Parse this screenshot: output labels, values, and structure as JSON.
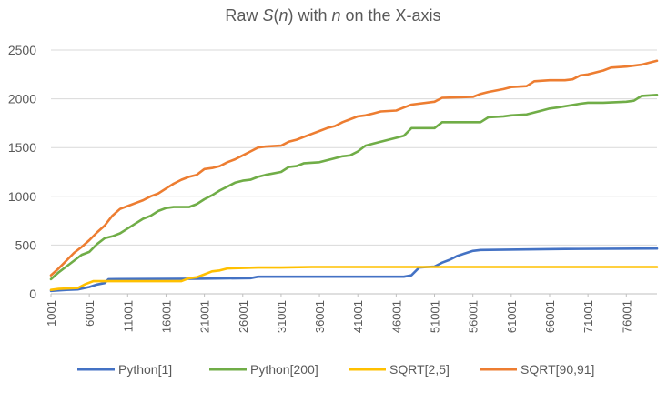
{
  "chart_data": {
    "type": "line",
    "title": {
      "prefix": "Raw ",
      "italic_s": "S",
      "paren_open": "(",
      "italic_n": "n",
      "paren_close": ")",
      "middle": " with ",
      "italic_n2": "n",
      "suffix": " on the X-axis"
    },
    "xlabel": "",
    "ylabel": "",
    "xlim": [
      1001,
      80000
    ],
    "ylim": [
      0,
      2500
    ],
    "x_ticks": [
      "1001",
      "6001",
      "11001",
      "16001",
      "21001",
      "26001",
      "31001",
      "36001",
      "41001",
      "46001",
      "51001",
      "56001",
      "61001",
      "66001",
      "71001",
      "76001"
    ],
    "y_ticks": [
      "0",
      "500",
      "1000",
      "1500",
      "2000",
      "2500"
    ],
    "grid": "horizontal",
    "legend_position": "bottom",
    "series": [
      {
        "name": "Python[1]",
        "color": "#4472C4",
        "points": [
          [
            1001,
            30
          ],
          [
            3000,
            40
          ],
          [
            4500,
            45
          ],
          [
            6001,
            70
          ],
          [
            7000,
            95
          ],
          [
            8000,
            110
          ],
          [
            8500,
            150
          ],
          [
            20000,
            155
          ],
          [
            27000,
            160
          ],
          [
            28000,
            175
          ],
          [
            47000,
            175
          ],
          [
            48000,
            190
          ],
          [
            49000,
            270
          ],
          [
            51001,
            280
          ],
          [
            52000,
            320
          ],
          [
            53000,
            350
          ],
          [
            54000,
            390
          ],
          [
            56001,
            440
          ],
          [
            57000,
            450
          ],
          [
            63000,
            455
          ],
          [
            68000,
            460
          ],
          [
            80000,
            465
          ]
        ]
      },
      {
        "name": "Python[200]",
        "color": "#70AD47",
        "points": [
          [
            1001,
            150
          ],
          [
            2000,
            220
          ],
          [
            3000,
            280
          ],
          [
            4000,
            340
          ],
          [
            5000,
            400
          ],
          [
            6001,
            430
          ],
          [
            7000,
            510
          ],
          [
            8000,
            570
          ],
          [
            9000,
            590
          ],
          [
            10000,
            620
          ],
          [
            11001,
            670
          ],
          [
            12000,
            720
          ],
          [
            13000,
            770
          ],
          [
            14000,
            800
          ],
          [
            15000,
            850
          ],
          [
            16001,
            880
          ],
          [
            17000,
            890
          ],
          [
            19000,
            890
          ],
          [
            20000,
            920
          ],
          [
            21001,
            970
          ],
          [
            22000,
            1010
          ],
          [
            23000,
            1060
          ],
          [
            24000,
            1100
          ],
          [
            25000,
            1140
          ],
          [
            26001,
            1160
          ],
          [
            27000,
            1170
          ],
          [
            28000,
            1200
          ],
          [
            29000,
            1220
          ],
          [
            31001,
            1250
          ],
          [
            32000,
            1300
          ],
          [
            33000,
            1310
          ],
          [
            34000,
            1340
          ],
          [
            36001,
            1350
          ],
          [
            37000,
            1370
          ],
          [
            38000,
            1390
          ],
          [
            39000,
            1410
          ],
          [
            40000,
            1420
          ],
          [
            41001,
            1460
          ],
          [
            42000,
            1520
          ],
          [
            43000,
            1540
          ],
          [
            44000,
            1560
          ],
          [
            45000,
            1580
          ],
          [
            46001,
            1600
          ],
          [
            47000,
            1620
          ],
          [
            48000,
            1700
          ],
          [
            51001,
            1700
          ],
          [
            52000,
            1760
          ],
          [
            56001,
            1760
          ],
          [
            57000,
            1760
          ],
          [
            58000,
            1810
          ],
          [
            60000,
            1820
          ],
          [
            61001,
            1830
          ],
          [
            63000,
            1840
          ],
          [
            64000,
            1860
          ],
          [
            65000,
            1880
          ],
          [
            66001,
            1900
          ],
          [
            67000,
            1910
          ],
          [
            70000,
            1950
          ],
          [
            71001,
            1960
          ],
          [
            73000,
            1960
          ],
          [
            76001,
            1970
          ],
          [
            77000,
            1980
          ],
          [
            78000,
            2030
          ],
          [
            80000,
            2040
          ]
        ]
      },
      {
        "name": "SQRT[2,5]",
        "color": "#FFC000",
        "points": [
          [
            1001,
            40
          ],
          [
            2000,
            50
          ],
          [
            4500,
            60
          ],
          [
            5500,
            100
          ],
          [
            6500,
            130
          ],
          [
            10000,
            130
          ],
          [
            18000,
            130
          ],
          [
            19000,
            160
          ],
          [
            20000,
            170
          ],
          [
            21001,
            200
          ],
          [
            22000,
            230
          ],
          [
            23000,
            240
          ],
          [
            24000,
            260
          ],
          [
            26001,
            265
          ],
          [
            28000,
            270
          ],
          [
            31001,
            270
          ],
          [
            35000,
            275
          ],
          [
            80000,
            275
          ]
        ]
      },
      {
        "name": "SQRT[90,91]",
        "color": "#ED7D31",
        "points": [
          [
            1001,
            190
          ],
          [
            2000,
            260
          ],
          [
            3000,
            340
          ],
          [
            4000,
            420
          ],
          [
            5000,
            480
          ],
          [
            6001,
            550
          ],
          [
            7000,
            630
          ],
          [
            8000,
            700
          ],
          [
            9000,
            800
          ],
          [
            10000,
            870
          ],
          [
            11001,
            900
          ],
          [
            12000,
            930
          ],
          [
            13000,
            960
          ],
          [
            14000,
            1000
          ],
          [
            15000,
            1030
          ],
          [
            16001,
            1080
          ],
          [
            17000,
            1130
          ],
          [
            18000,
            1170
          ],
          [
            19000,
            1200
          ],
          [
            20000,
            1220
          ],
          [
            21001,
            1280
          ],
          [
            22000,
            1290
          ],
          [
            23000,
            1310
          ],
          [
            24000,
            1350
          ],
          [
            25000,
            1380
          ],
          [
            26001,
            1420
          ],
          [
            27000,
            1460
          ],
          [
            28000,
            1500
          ],
          [
            29000,
            1510
          ],
          [
            31001,
            1520
          ],
          [
            32000,
            1560
          ],
          [
            33000,
            1580
          ],
          [
            34000,
            1610
          ],
          [
            35000,
            1640
          ],
          [
            36001,
            1670
          ],
          [
            37000,
            1700
          ],
          [
            38000,
            1720
          ],
          [
            39000,
            1760
          ],
          [
            40000,
            1790
          ],
          [
            41001,
            1820
          ],
          [
            42000,
            1830
          ],
          [
            43000,
            1850
          ],
          [
            44000,
            1870
          ],
          [
            46001,
            1880
          ],
          [
            47000,
            1910
          ],
          [
            48000,
            1940
          ],
          [
            51001,
            1970
          ],
          [
            52000,
            2010
          ],
          [
            56001,
            2020
          ],
          [
            57000,
            2050
          ],
          [
            58000,
            2070
          ],
          [
            60000,
            2100
          ],
          [
            61001,
            2120
          ],
          [
            63000,
            2130
          ],
          [
            64000,
            2180
          ],
          [
            66001,
            2190
          ],
          [
            67000,
            2190
          ],
          [
            68000,
            2190
          ],
          [
            69000,
            2200
          ],
          [
            70000,
            2240
          ],
          [
            71001,
            2250
          ],
          [
            73000,
            2290
          ],
          [
            74000,
            2320
          ],
          [
            76001,
            2330
          ],
          [
            78000,
            2350
          ],
          [
            79000,
            2370
          ],
          [
            80000,
            2390
          ]
        ]
      }
    ]
  }
}
